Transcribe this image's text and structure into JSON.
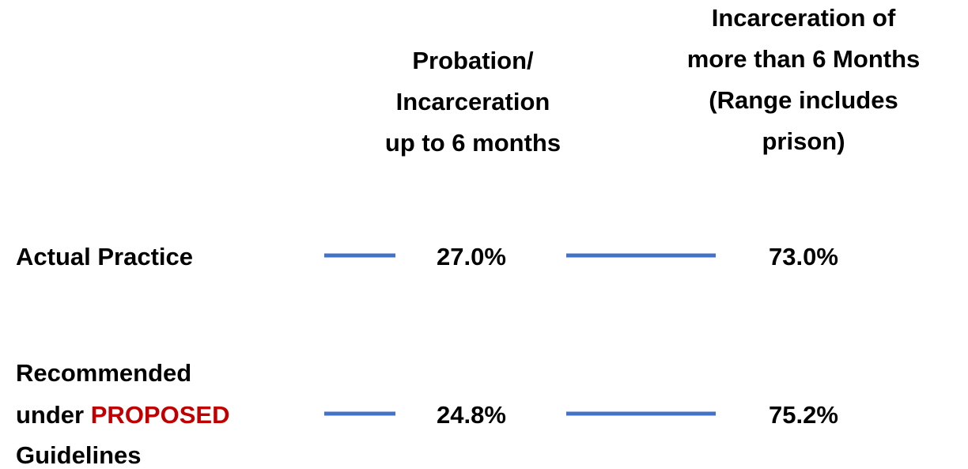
{
  "table": {
    "headers": [
      [
        "Probation/",
        "Incarceration",
        "up to 6 months"
      ],
      [
        "Incarceration of",
        "more than 6 Months",
        "(Range includes",
        "prison)"
      ]
    ],
    "rows": [
      {
        "label": [
          "Actual Practice"
        ],
        "cells": [
          "27.0%",
          "73.0%"
        ]
      },
      {
        "label": [
          "Recommended",
          "under",
          "PROPOSED",
          "Guidelines"
        ],
        "cells": [
          "24.8%",
          "75.2%"
        ]
      }
    ]
  }
}
